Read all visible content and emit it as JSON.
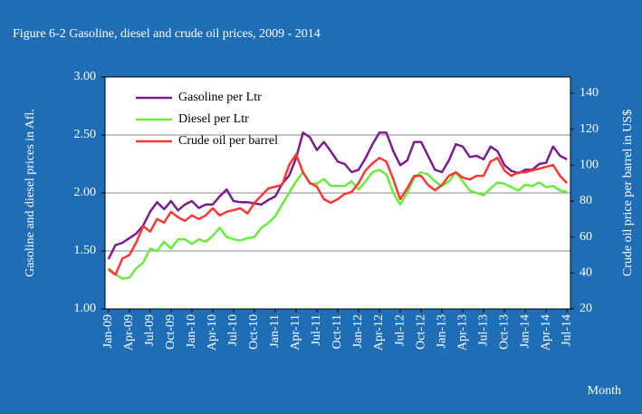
{
  "chart_data": {
    "type": "line",
    "title": "Figure 6-2 Gasoline, diesel and crude oil prices, 2009 - 2014",
    "ylabel": "Gasoline and diesel prices in Afl.",
    "y2label": "Crude oil price per barrel in US$",
    "xlabel": "Month",
    "categories": [
      "Jan-09",
      null,
      null,
      "Apr-09",
      null,
      null,
      "Jul-09",
      null,
      null,
      "Oct-09",
      null,
      null,
      "Jan-10",
      null,
      null,
      "Apr-10",
      null,
      null,
      "Jul-10",
      null,
      null,
      "Oct-10",
      null,
      null,
      "Jan-11",
      null,
      null,
      "Apr-11",
      null,
      null,
      "Jul-11",
      null,
      null,
      "Oct-11",
      null,
      null,
      "Jan-12",
      null,
      null,
      "Apr-12",
      null,
      null,
      "Jul-12",
      null,
      null,
      "Oct-12",
      null,
      null,
      "Jan-13",
      null,
      null,
      "Apr-13",
      null,
      null,
      "Jul-13",
      null,
      null,
      "Oct-13",
      null,
      null,
      "Jan-14",
      null,
      null,
      "Apr-14",
      null,
      null,
      "Jul-14"
    ],
    "series": [
      {
        "name": "Gasoline per Ltr",
        "color": "#7a1e8c",
        "values": [
          1.43,
          1.55,
          1.57,
          1.61,
          1.65,
          1.72,
          1.84,
          1.92,
          1.86,
          1.93,
          1.85,
          1.9,
          1.93,
          1.87,
          1.9,
          1.9,
          1.97,
          2.03,
          1.93,
          1.92,
          1.92,
          1.91,
          1.9,
          1.94,
          1.97,
          2.08,
          2.15,
          2.3,
          2.52,
          2.48,
          2.37,
          2.44,
          2.36,
          2.27,
          2.25,
          2.18,
          2.2,
          2.3,
          2.42,
          2.52,
          2.52,
          2.36,
          2.24,
          2.28,
          2.44,
          2.44,
          2.32,
          2.2,
          2.18,
          2.28,
          2.42,
          2.4,
          2.31,
          2.32,
          2.29,
          2.4,
          2.36,
          2.24,
          2.19,
          2.17,
          2.2,
          2.2,
          2.25,
          2.26,
          2.4,
          2.32,
          2.29
        ]
      },
      {
        "name": "Diesel per Ltr",
        "color": "#66ee3c",
        "values": [
          1.35,
          1.3,
          1.26,
          1.27,
          1.35,
          1.4,
          1.52,
          1.5,
          1.58,
          1.52,
          1.6,
          1.6,
          1.56,
          1.6,
          1.58,
          1.63,
          1.7,
          1.62,
          1.6,
          1.59,
          1.61,
          1.62,
          1.7,
          1.74,
          1.8,
          1.9,
          2.0,
          2.1,
          2.18,
          2.08,
          2.08,
          2.12,
          2.06,
          2.06,
          2.06,
          2.1,
          2.03,
          2.1,
          2.18,
          2.2,
          2.16,
          2.0,
          1.9,
          2.0,
          2.13,
          2.18,
          2.16,
          2.1,
          2.06,
          2.1,
          2.18,
          2.1,
          2.02,
          2.0,
          1.98,
          2.04,
          2.09,
          2.08,
          2.05,
          2.02,
          2.07,
          2.06,
          2.09,
          2.05,
          2.06,
          2.02,
          2.01
        ]
      },
      {
        "name": "Crude oil per barrel",
        "color": "#ff3535",
        "axis": "y2",
        "values": [
          42,
          39,
          48,
          50,
          57,
          66,
          63,
          70,
          68,
          74,
          71,
          69,
          72,
          70,
          72,
          76,
          72,
          74,
          75,
          76,
          73,
          79,
          83,
          87,
          88,
          89,
          100,
          106,
          96,
          90,
          88,
          81,
          79,
          81,
          84,
          85,
          90,
          97,
          101,
          104,
          102,
          92,
          81,
          87,
          94,
          94,
          89,
          86,
          89,
          94,
          96,
          93,
          92,
          94,
          94,
          102,
          104,
          97,
          94,
          96,
          96,
          97,
          98,
          99,
          100,
          94,
          90
        ]
      }
    ],
    "ylim": [
      1,
      3
    ],
    "yticks": [
      {
        "value": 1,
        "label": "1.00"
      },
      {
        "value": 1.5,
        "label": "1.50"
      },
      {
        "value": 2,
        "label": "2.00"
      },
      {
        "value": 2.5,
        "label": "2.50"
      },
      {
        "value": 3,
        "label": "3.00"
      }
    ],
    "y2lim": [
      20,
      149
    ],
    "y2ticks": [
      20,
      40,
      60,
      80,
      100,
      120,
      140
    ],
    "grid": true
  }
}
